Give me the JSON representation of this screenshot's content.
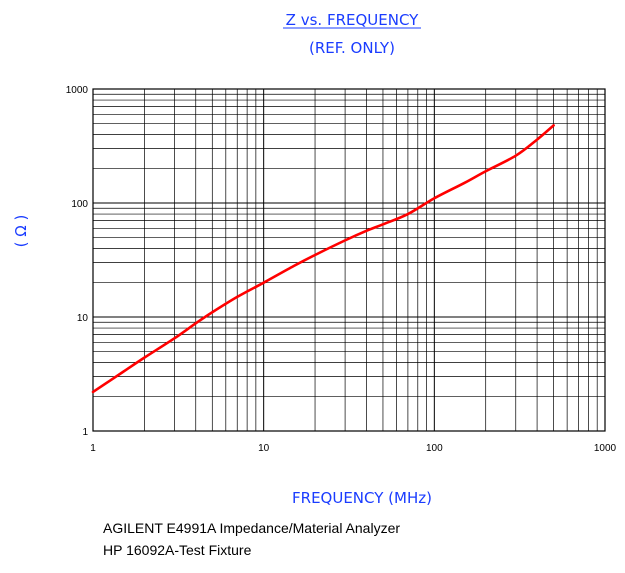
{
  "chart_data": {
    "type": "line",
    "title": "Z vs. FREQUENCY",
    "subtitle": "(REF. ONLY)",
    "xlabel": "FREQUENCY (MHz)",
    "ylabel": "( Ω )",
    "xscale": "log",
    "yscale": "log",
    "xlim": [
      1,
      1000
    ],
    "ylim": [
      1,
      1000
    ],
    "grid": true,
    "x_ticks": [
      "1",
      "10",
      "100",
      "1000"
    ],
    "y_ticks": [
      "1",
      "10",
      "100",
      "1000"
    ],
    "series": [
      {
        "color": "#ff0000",
        "x": [
          1,
          1.5,
          2,
          3,
          4,
          5,
          7,
          10,
          15,
          20,
          30,
          40,
          50,
          70,
          100,
          150,
          200,
          300,
          400,
          500
        ],
        "y": [
          2.2,
          3.3,
          4.4,
          6.5,
          8.8,
          11,
          15,
          20,
          28,
          35,
          47,
          57,
          65,
          80,
          110,
          150,
          190,
          260,
          360,
          480
        ]
      }
    ]
  },
  "footnotes": [
    "AGILENT E4991A Impedance/Material Analyzer",
    "HP 16092A-Test Fixture"
  ]
}
